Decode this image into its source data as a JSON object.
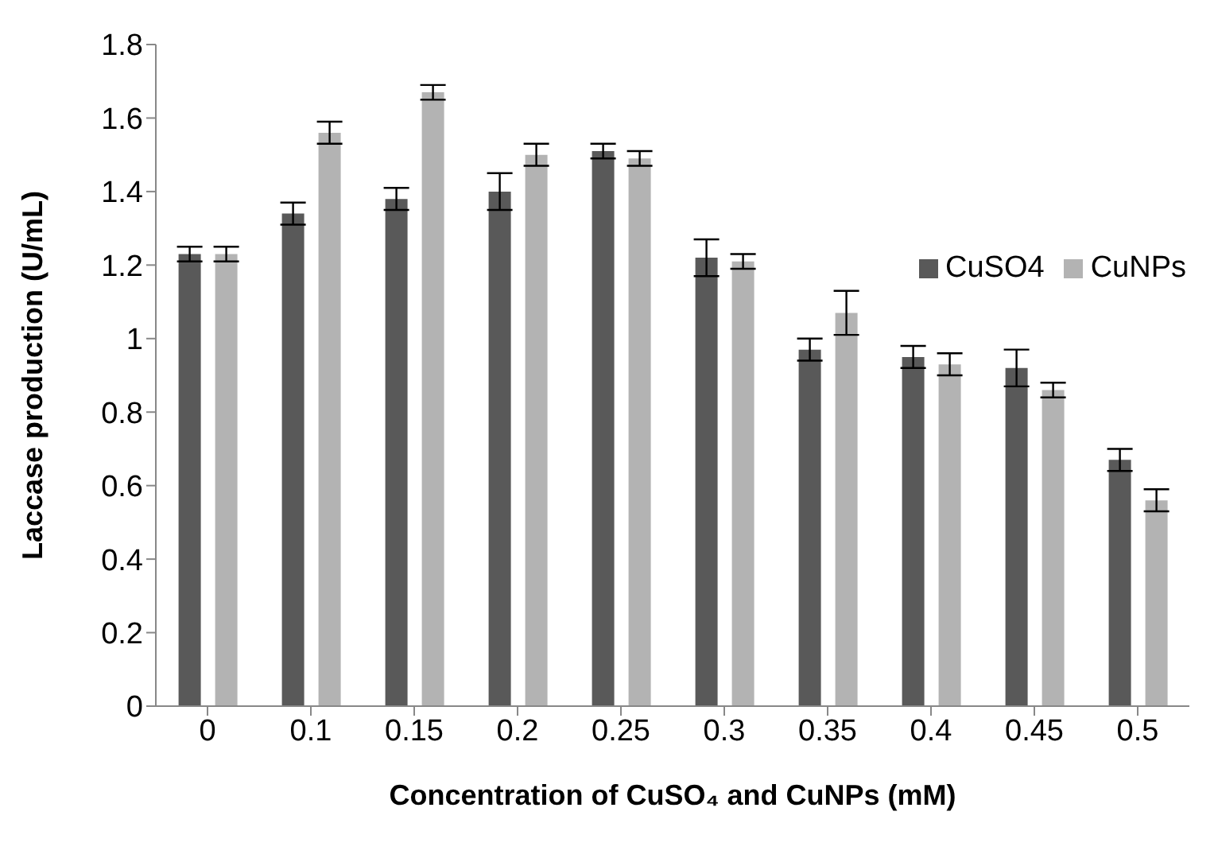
{
  "chart_data": {
    "type": "bar",
    "xlabel": "Concentration of CuSO₄ and CuNPs (mM)",
    "ylabel": "Laccase production (U/mL)",
    "categories": [
      "0",
      "0.1",
      "0.15",
      "0.2",
      "0.25",
      "0.3",
      "0.35",
      "0.4",
      "0.45",
      "0.5"
    ],
    "series": [
      {
        "name": "CuSO4",
        "color": "#595959",
        "values": [
          1.23,
          1.34,
          1.38,
          1.4,
          1.51,
          1.22,
          0.97,
          0.95,
          0.92,
          0.67
        ],
        "errors": [
          0.02,
          0.03,
          0.03,
          0.05,
          0.02,
          0.05,
          0.03,
          0.03,
          0.05,
          0.03
        ]
      },
      {
        "name": "CuNPs",
        "color": "#b3b3b3",
        "values": [
          1.23,
          1.56,
          1.67,
          1.5,
          1.49,
          1.21,
          1.07,
          0.93,
          0.86,
          0.56
        ],
        "errors": [
          0.02,
          0.03,
          0.02,
          0.03,
          0.02,
          0.02,
          0.06,
          0.03,
          0.02,
          0.03
        ]
      }
    ],
    "ylim": [
      0,
      1.8
    ],
    "yticks": [
      0,
      0.2,
      0.4,
      0.6,
      0.8,
      1,
      1.2,
      1.4,
      1.6,
      1.8
    ],
    "grid": false,
    "legend": "right"
  }
}
